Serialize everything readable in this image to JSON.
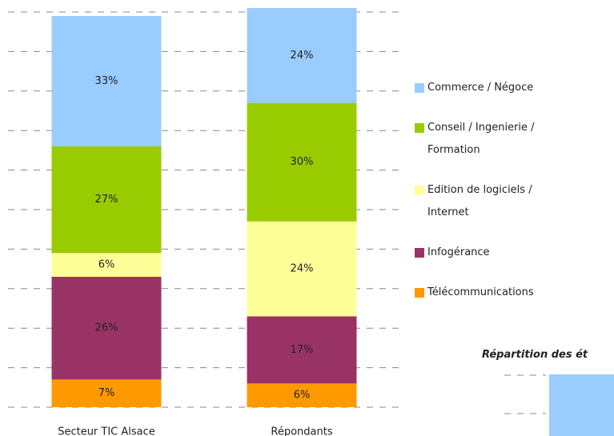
{
  "chart_data": [
    {
      "type": "bar",
      "stacked": true,
      "categories": [
        "Secteur TIC Alsace",
        "Répondants"
      ],
      "ylim": [
        0,
        100
      ],
      "yticks": [
        0,
        10,
        20,
        30,
        40,
        50,
        60,
        70,
        80,
        90,
        100
      ],
      "grid": true,
      "series": [
        {
          "name": "Télécommunications",
          "color": "#ff9900",
          "values": [
            7,
            6
          ],
          "value_labels": [
            "7%",
            "6%"
          ]
        },
        {
          "name": "Infogérance",
          "color": "#993366",
          "values": [
            26,
            17
          ],
          "value_labels": [
            "26%",
            "17%"
          ]
        },
        {
          "name": "Edition de logiciels / Internet",
          "color": "#ffff99",
          "values": [
            6,
            24
          ],
          "value_labels": [
            "6%",
            "24%"
          ]
        },
        {
          "name": "Conseil / Ingenierie / Formation",
          "color": "#99cc00",
          "values": [
            27,
            30
          ],
          "value_labels": [
            "27%",
            "30%"
          ]
        },
        {
          "name": "Commerce / Négoce",
          "color": "#99ccff",
          "values": [
            33,
            24
          ],
          "value_labels": [
            "33%",
            "24%"
          ]
        }
      ]
    },
    {
      "type": "bar",
      "title": "Répartition des ét"
    }
  ]
}
